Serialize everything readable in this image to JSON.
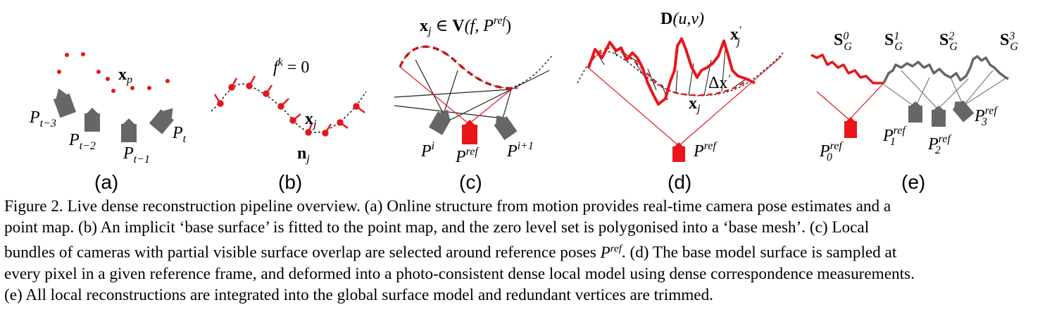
{
  "figure": {
    "panels": [
      {
        "id": "a",
        "label": "(a)",
        "point": "x",
        "point_sub": "p",
        "cameras": [
          {
            "base": "P",
            "sub": "t−3",
            "sup": ""
          },
          {
            "base": "P",
            "sub": "t−2",
            "sup": ""
          },
          {
            "base": "P",
            "sub": "t−1",
            "sup": ""
          },
          {
            "base": "P",
            "sub": "t",
            "sup": ""
          }
        ]
      },
      {
        "id": "b",
        "label": "(b)",
        "level_set": "f",
        "level_set_sup": "k",
        "level_set_rest": " = 0",
        "point": "x",
        "point_sub": "j",
        "normal": "n",
        "normal_sub": "j"
      },
      {
        "id": "c",
        "label": "(c)",
        "formula_main": "x",
        "formula_sub": "j",
        "formula_mid": " ∈ ",
        "formula_set": "V",
        "formula_args": "(f, P",
        "formula_args_sup": "ref",
        "formula_close": ")",
        "cameras": [
          {
            "base": "P",
            "sub": "",
            "sup": "i"
          },
          {
            "base": "P",
            "sub": "",
            "sup": "ref"
          },
          {
            "base": "P",
            "sub": "",
            "sup": "i+1"
          }
        ]
      },
      {
        "id": "d",
        "label": "(d)",
        "func": "D",
        "func_args": "(u,v)",
        "point_prime": "x",
        "point_prime_sub": "j",
        "point_prime_sup": "′",
        "delta": "Δx",
        "delta_sup": "′",
        "point": "x",
        "point_sub": "j",
        "camera": {
          "base": "P",
          "sup": "ref"
        }
      },
      {
        "id": "e",
        "label": "(e)",
        "surfaces": [
          {
            "base": "S",
            "sub": "G",
            "sup": "0"
          },
          {
            "base": "S",
            "sub": "G",
            "sup": "1"
          },
          {
            "base": "S",
            "sub": "G",
            "sup": "2"
          },
          {
            "base": "S",
            "sub": "G",
            "sup": "3"
          }
        ],
        "cameras": [
          {
            "base": "P",
            "sub": "0",
            "sup": "ref"
          },
          {
            "base": "P",
            "sub": "1",
            "sup": "ref"
          },
          {
            "base": "P",
            "sub": "2",
            "sup": "ref"
          },
          {
            "base": "P",
            "sub": "3",
            "sup": "ref"
          }
        ]
      }
    ],
    "colors": {
      "red": "#e8161a",
      "gray": "#666666",
      "dark": "#222222"
    }
  },
  "caption": {
    "lines": [
      "Figure 2.  Live dense reconstruction pipeline overview. (a) Online structure from motion provides real-time camera pose estimates and a",
      "point map. (b) An implicit ‘base surface’ is fitted to the point map, and the zero level set is polygonised into a ‘base mesh’. (c) Local",
      "bundles of cameras with partial visible surface overlap are selected around reference poses",
      ". (d) The base model surface is sampled at",
      "every pixel in a given reference frame, and deformed into a photo-consistent dense local model using dense correspondence measurements.",
      "(e) All local reconstructions are integrated into the global surface model and redundant vertices are trimmed."
    ],
    "inline_math_base": "P",
    "inline_math_sup": "ref"
  }
}
